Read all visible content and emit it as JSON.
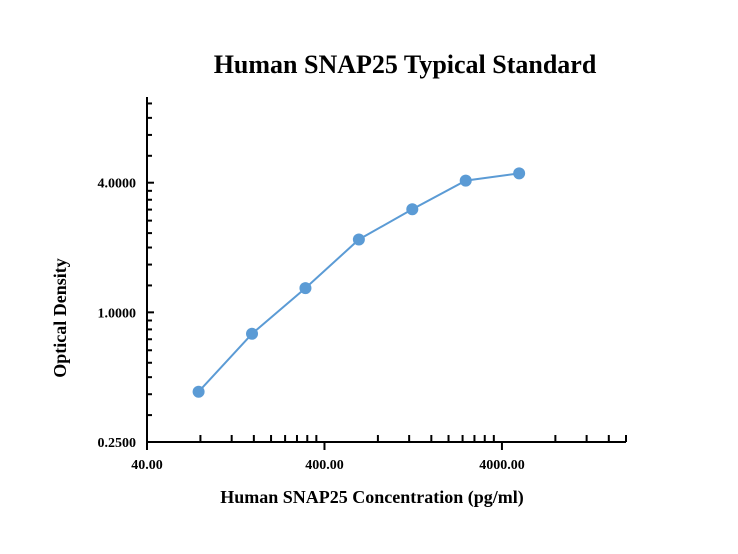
{
  "chart_data": {
    "type": "line",
    "title": "Human SNAP25 Typical Standard",
    "xlabel": "Human SNAP25 Concentration (pg/ml)",
    "ylabel": "Optical Density",
    "x_scale": "log",
    "y_scale": "log",
    "xlim": [
      40,
      20000
    ],
    "ylim": [
      0.25,
      10
    ],
    "x_ticks": [
      40,
      400,
      4000
    ],
    "x_tick_labels": [
      "40.00",
      "400.00",
      "4000.00"
    ],
    "y_ticks": [
      0.25,
      1,
      4
    ],
    "y_tick_labels": [
      "0.2500",
      "1.0000",
      "4.0000"
    ],
    "grid": false,
    "legend": "none",
    "series": [
      {
        "color": "#5b9bd5",
        "x": [
          78.13,
          156.25,
          312.5,
          625,
          1250,
          2500,
          5000
        ],
        "y": [
          0.428,
          0.795,
          1.295,
          2.18,
          3.01,
          4.09,
          4.42
        ]
      }
    ]
  }
}
